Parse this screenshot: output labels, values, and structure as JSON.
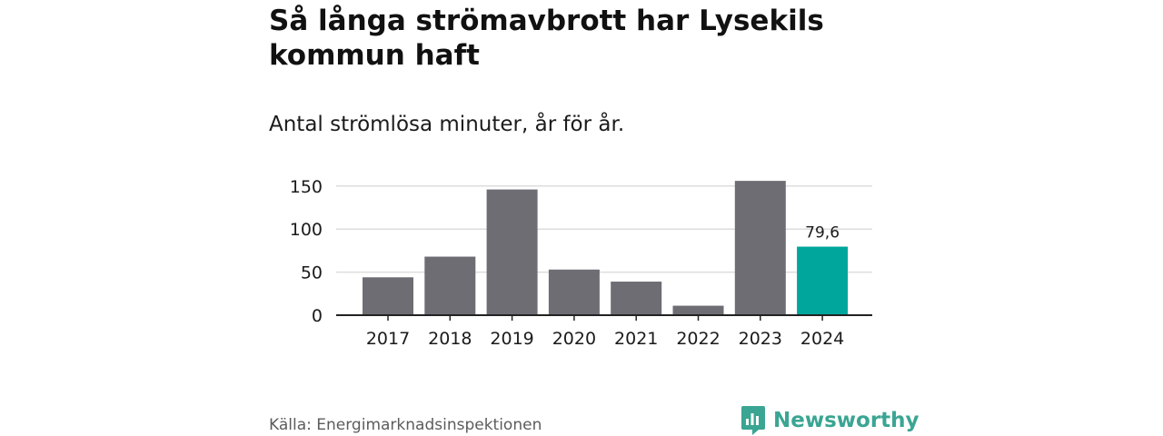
{
  "title": "Så långa strömavbrott har Lysekils kommun haft",
  "subtitle": "Antal strömlösa minuter, år för år.",
  "source": "Källa: Energimarknadsinspektionen",
  "brand": {
    "name": "Newsworthy",
    "icon": "newsworthy-logo-icon",
    "color": "#3aa592"
  },
  "colors": {
    "bar": "#6e6d73",
    "highlight": "#00a69b",
    "grid": "#dddddd",
    "axis": "#222222",
    "text": "#1b1b1b"
  },
  "chart_data": {
    "type": "bar",
    "title": "Så långa strömavbrott har Lysekils kommun haft",
    "subtitle": "Antal strömlösa minuter, år för år.",
    "xlabel": "",
    "ylabel": "",
    "categories": [
      "2017",
      "2018",
      "2019",
      "2020",
      "2021",
      "2022",
      "2023",
      "2024"
    ],
    "values": [
      44,
      68,
      146,
      53,
      39,
      11,
      156,
      79.6
    ],
    "highlight_index": 7,
    "data_labels": [
      null,
      null,
      null,
      null,
      null,
      null,
      null,
      "79,6"
    ],
    "yticks": [
      0,
      50,
      100,
      150
    ],
    "ytick_labels": [
      "0",
      "50",
      "100",
      "150"
    ],
    "ylim": [
      0,
      160
    ],
    "grid": true,
    "legend": "none"
  }
}
